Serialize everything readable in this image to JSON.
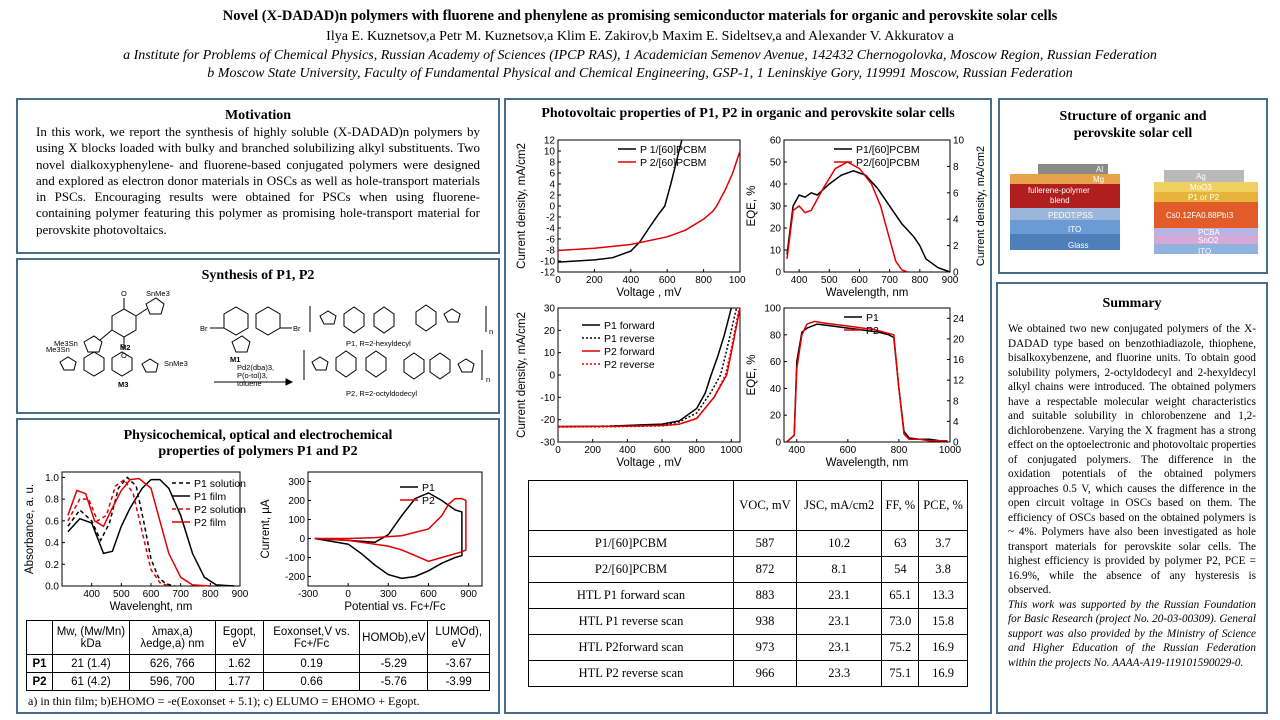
{
  "header": {
    "title": "Novel (X-DADAD)n polymers with fluorene and phenylene as promising semiconductor materials for organic and perovskite solar cells",
    "authors": "Ilya E. Kuznetsov,a Petr M. Kuznetsov,a Klim E. Zakirov,b Maxim E. Sideltsev,a and Alexander V. Akkuratov a",
    "aff_a": "a Institute for Problems of Chemical Physics, Russian Academy of Sciences (IPCP RAS), 1 Academician Semenov Avenue, 142432 Chernogolovka, Moscow Region, Russian Federation",
    "aff_b": "b Moscow State University, Faculty of Fundamental Physical and Chemical Engineering, GSP-1, 1 Leninskiye Gory, 119991 Moscow, Russian Federation"
  },
  "motivation": {
    "title": "Motivation",
    "text": "In this work, we report the synthesis of highly soluble (X-DADAD)n polymers by using X blocks loaded with bulky and branched solubilizing alkyl substituents. Two novel dialkoxyphenylene- and fluorene-based conjugated polymers were designed and explored as electron donor materials in OSCs as well as hole-transport materials in PSCs. Encouraging results were obtained for PSCs when using fluorene-containing polymer featuring this polymer as promising hole-transport material for perovskite photovoltaics."
  },
  "synthesis": {
    "title": "Synthesis of P1, P2",
    "labels": {
      "m2": "M2",
      "m1": "M1",
      "m3": "M3",
      "p1": "P1, R=2-hexyldecyl",
      "p2": "P2, R=2-octyldodecyl",
      "sn1": "Me3Sn",
      "sn2": "SnMe3",
      "br1": "Br",
      "br2": "Br",
      "cat": "Pd2(dba)3,",
      "lig": "P(o-tol)3,",
      "solv": "toluene",
      "n1": "n",
      "n2": "n",
      "o": "O",
      "r": "R"
    }
  },
  "physchem": {
    "title1": "Physicochemical, optical and electrochemical",
    "title2": "properties of polymers P1 and P2",
    "table": {
      "headers": [
        "",
        "Mw, (Mw/Mn) kDa",
        "λmax,a) λedge,a) nm",
        "Egopt, eV",
        "Eoxonset,V vs. Fc+/Fc",
        "HOMOb),eV",
        "LUMOd), eV"
      ],
      "rows": [
        [
          "P1",
          "21 (1.4)",
          "626, 766",
          "1.62",
          "0.19",
          "-5.29",
          "-3.67"
        ],
        [
          "P2",
          "61 (4.2)",
          "596, 700",
          "1.77",
          "0.66",
          "-5.76",
          "-3.99"
        ]
      ]
    },
    "footnote": "a) in thin film; b)EHOMO = -e(Eoxonset + 5.1); c) ELUMO = EHOMO + Egopt."
  },
  "pv": {
    "title": "Photovoltaic properties of P1, P2 in organic and perovskite solar cells",
    "table": {
      "headers": [
        "",
        "VOC, mV",
        "JSC, mA/cm2",
        "FF, %",
        "PCE, %"
      ],
      "rows": [
        [
          "P1/[60]PCBM",
          "587",
          "10.2",
          "63",
          "3.7"
        ],
        [
          "P2/[60]PCBM",
          "872",
          "8.1",
          "54",
          "3.8"
        ],
        [
          "HTL P1 forward scan",
          "883",
          "23.1",
          "65.1",
          "13.3"
        ],
        [
          "HTL P1 reverse scan",
          "938",
          "23.1",
          "73.0",
          "15.8"
        ],
        [
          "HTL P2forward scan",
          "973",
          "23.1",
          "75.2",
          "16.9"
        ],
        [
          "HTL P2 reverse scan",
          "966",
          "23.3",
          "75.1",
          "16.9"
        ]
      ]
    }
  },
  "structure": {
    "title1": "Structure of organic and",
    "title2": "perovskite solar cell",
    "left_layers": [
      "Al",
      "Mg",
      "fullerene-polymer",
      "blend",
      "PEDOT:PSS",
      "ITO",
      "Glass"
    ],
    "right_layers": [
      "Ag",
      "MoO3",
      "P1 or P2",
      "Cs0.12FA0.88PbI3",
      "PCBA",
      "SnO2",
      "ITO"
    ]
  },
  "summary": {
    "title": "Summary",
    "text": "We obtained two new conjugated polymers of the X-DADAD type based on benzothiadiazole, thiophene, bisalkoxybenzene, and fluorine units. To obtain good solubility polymers, 2-octyldodecyl and 2-hexyldecyl alkyl chains were introduced. The obtained polymers have a respectable molecular weight characteristics and suitable solubility in chlorobenzene and 1,2-dichlorobenzene. Varying the X fragment has a strong effect on the optoelectronic and photovoltaic properties of conjugated polymers. The difference in the oxidation potentials of the obtained polymers approaches 0.5 V, which causes the difference in the open circuit voltage in OSCs based on them. The efficiency of OSCs based on the obtained polymers is ~ 4%. Polymers have also been investigated as hole transport materials for perovskite solar cells. The highest efficiency is provided by polymer P2, PCE = 16.9%, while the absence of any hysteresis is observed.",
    "ack": "This work was supported by the Russian Foundation for Basic Research (project No. 20-03-00309). General support was also provided by the Ministry of Science and Higher Education of the Russian Federation within the projects No. AAAA-A19-119101590029-0."
  },
  "chart_data": [
    {
      "type": "line",
      "id": "absorbance",
      "xlabel": "Wavelenght, nm",
      "ylabel": "Absorbance, a. u.",
      "xlim": [
        300,
        900
      ],
      "ylim": [
        0,
        1.05
      ],
      "xticks": [
        "400",
        "500",
        "600",
        "700",
        "800",
        "900"
      ],
      "yticks": [
        "0.0",
        "0.2",
        "0.4",
        "0.6",
        "0.8",
        "1.0"
      ],
      "series": [
        {
          "name": "P1 solution",
          "color": "#000000",
          "dash": "4,3",
          "x": [
            320,
            360,
            400,
            430,
            460,
            490,
            520,
            550,
            575,
            600,
            625,
            650,
            680
          ],
          "y": [
            0.55,
            0.7,
            0.6,
            0.42,
            0.58,
            0.9,
            1.0,
            0.92,
            0.6,
            0.25,
            0.08,
            0.02,
            0.0
          ]
        },
        {
          "name": "P1 film",
          "color": "#000000",
          "dash": "",
          "x": [
            320,
            360,
            400,
            440,
            470,
            500,
            530,
            570,
            600,
            630,
            660,
            700,
            740,
            780,
            820,
            880
          ],
          "y": [
            0.5,
            0.62,
            0.58,
            0.3,
            0.32,
            0.55,
            0.72,
            0.9,
            0.98,
            0.98,
            0.9,
            0.65,
            0.3,
            0.08,
            0.01,
            0.0
          ]
        },
        {
          "name": "P2 solution",
          "color": "#e00000",
          "dash": "4,3",
          "x": [
            320,
            360,
            390,
            420,
            450,
            480,
            510,
            540,
            570,
            600,
            630,
            660
          ],
          "y": [
            0.6,
            0.8,
            0.8,
            0.6,
            0.65,
            0.92,
            0.98,
            0.85,
            0.5,
            0.15,
            0.03,
            0.0
          ]
        },
        {
          "name": "P2 film",
          "color": "#e00000",
          "dash": "",
          "x": [
            320,
            350,
            380,
            410,
            440,
            470,
            500,
            530,
            560,
            600,
            630,
            660,
            700,
            740,
            800
          ],
          "y": [
            0.65,
            0.88,
            0.85,
            0.6,
            0.55,
            0.72,
            0.88,
            0.98,
            0.99,
            0.9,
            0.6,
            0.3,
            0.08,
            0.01,
            0.0
          ]
        }
      ]
    },
    {
      "type": "line",
      "id": "cv",
      "xlabel": "Potential vs. Fc+/Fc",
      "ylabel": "Current, µA",
      "xlim": [
        -300,
        1000
      ],
      "ylim": [
        -250,
        350
      ],
      "xticks": [
        "-300",
        "0",
        "300",
        "600",
        "900"
      ],
      "yticks": [
        "-200",
        "-100",
        "0",
        "100",
        "200",
        "300"
      ],
      "series": [
        {
          "name": "P1",
          "color": "#000000",
          "x": [
            -250,
            0,
            200,
            300,
            400,
            500,
            600,
            700,
            800,
            850,
            850,
            800,
            700,
            600,
            500,
            400,
            300,
            200,
            100,
            0,
            -250
          ],
          "y": [
            0,
            -10,
            -20,
            20,
            120,
            210,
            240,
            200,
            150,
            140,
            -90,
            -100,
            -130,
            -170,
            -200,
            -210,
            -190,
            -140,
            -80,
            -30,
            0
          ]
        },
        {
          "name": "P2",
          "color": "#e00000",
          "x": [
            -250,
            0,
            200,
            400,
            600,
            700,
            750,
            800,
            850,
            880,
            880,
            850,
            800,
            700,
            600,
            500,
            400,
            300,
            200,
            100,
            0,
            -250
          ],
          "y": [
            0,
            0,
            5,
            15,
            50,
            120,
            180,
            210,
            210,
            200,
            -60,
            -70,
            -80,
            -100,
            -120,
            -90,
            -60,
            -40,
            -30,
            -20,
            -10,
            0
          ]
        }
      ]
    },
    {
      "type": "line",
      "id": "jv_opv",
      "xlabel": "Voltage , mV",
      "ylabel": "Current density, mA/cm2",
      "xlim": [
        0,
        1000
      ],
      "ylim": [
        -12,
        12
      ],
      "xticks": [
        "0",
        "200",
        "400",
        "600",
        "800",
        "1000"
      ],
      "yticks": [
        "-12",
        "-10",
        "-8",
        "-6",
        "-4",
        "-2",
        "0",
        "2",
        "4",
        "6",
        "8",
        "10",
        "12"
      ],
      "series": [
        {
          "name": "P 1/[60]PCBM",
          "color": "#000000",
          "x": [
            0,
            100,
            200,
            300,
            400,
            450,
            500,
            550,
            587,
            620,
            650,
            680
          ],
          "y": [
            -10.2,
            -10,
            -9.8,
            -9.4,
            -8.2,
            -6.5,
            -4,
            -1.6,
            0,
            4,
            8,
            12
          ]
        },
        {
          "name": "P 2/[60]PCBM",
          "color": "#e00000",
          "x": [
            0,
            200,
            400,
            600,
            700,
            800,
            850,
            872,
            920,
            960,
            1000
          ],
          "y": [
            -8.1,
            -7.7,
            -7,
            -5.6,
            -4.4,
            -2.4,
            -1,
            0,
            3,
            6,
            10
          ]
        }
      ]
    },
    {
      "type": "line",
      "id": "eqe_opv",
      "xlabel": "Wavelength, nm",
      "ylabel": "EQE, %",
      "y2label": "Current density, mA/cm2",
      "xlim": [
        350,
        900
      ],
      "ylim": [
        0,
        60
      ],
      "y2lim": [
        0,
        10
      ],
      "xticks": [
        "400",
        "500",
        "600",
        "700",
        "800",
        "900"
      ],
      "yticks": [
        "0",
        "10",
        "20",
        "30",
        "40",
        "50",
        "60"
      ],
      "y2ticks": [
        "0",
        "2",
        "4",
        "6",
        "8",
        "10"
      ],
      "series": [
        {
          "name": "P1/[60]PCBM",
          "color": "#000000",
          "x": [
            360,
            380,
            400,
            420,
            440,
            460,
            500,
            540,
            580,
            620,
            660,
            700,
            740,
            780,
            800,
            820,
            860,
            900
          ],
          "y": [
            8,
            30,
            35,
            34,
            36,
            35,
            40,
            44,
            46,
            44,
            38,
            30,
            22,
            16,
            12,
            6,
            2,
            0
          ]
        },
        {
          "name": "P2/[60]PCBM",
          "color": "#e00000",
          "x": [
            360,
            380,
            400,
            420,
            440,
            480,
            520,
            560,
            600,
            640,
            670,
            700,
            720,
            740,
            760
          ],
          "y": [
            6,
            28,
            30,
            27,
            28,
            38,
            47,
            50,
            47,
            40,
            30,
            15,
            5,
            1,
            0
          ]
        }
      ]
    },
    {
      "type": "line",
      "id": "jv_psc",
      "xlabel": "Voltage , mV",
      "ylabel": "Current density, mA/cm2",
      "xlim": [
        0,
        1050
      ],
      "ylim": [
        -30,
        30
      ],
      "xticks": [
        "0",
        "200",
        "400",
        "600",
        "800",
        "1000"
      ],
      "yticks": [
        "-30",
        "-20",
        "-10",
        "0",
        "10",
        "20",
        "30"
      ],
      "series": [
        {
          "name": "P1 forward",
          "color": "#000000",
          "x": [
            0,
            300,
            600,
            700,
            800,
            850,
            883,
            920,
            960,
            1000
          ],
          "y": [
            -23.1,
            -22.9,
            -22,
            -20.5,
            -15,
            -8,
            0,
            8,
            18,
            30
          ]
        },
        {
          "name": "P1 reverse",
          "color": "#000000",
          "dash": "2,2",
          "x": [
            0,
            300,
            600,
            700,
            800,
            880,
            938,
            970,
            1000,
            1030
          ],
          "y": [
            -23.1,
            -22.9,
            -22.3,
            -21,
            -17,
            -8,
            0,
            10,
            20,
            30
          ]
        },
        {
          "name": "P2 forward",
          "color": "#e00000",
          "x": [
            0,
            300,
            600,
            700,
            800,
            900,
            973,
            1000,
            1030,
            1050
          ],
          "y": [
            -23.1,
            -23,
            -22.6,
            -22,
            -19.5,
            -10,
            0,
            10,
            22,
            30
          ]
        },
        {
          "name": "P2 reverse",
          "color": "#e00000",
          "dash": "2,2",
          "x": [
            0,
            300,
            600,
            700,
            800,
            900,
            966,
            995,
            1025,
            1045
          ],
          "y": [
            -23.3,
            -23.2,
            -22.8,
            -22,
            -19.5,
            -10,
            0,
            10,
            22,
            30
          ]
        }
      ]
    },
    {
      "type": "line",
      "id": "eqe_psc",
      "xlabel": "Wavelength, nm",
      "ylabel": "EQE, %",
      "y2label": "",
      "xlim": [
        350,
        1000
      ],
      "ylim": [
        0,
        100
      ],
      "y2lim": [
        0,
        26
      ],
      "xticks": [
        "400",
        "600",
        "800",
        "1000"
      ],
      "yticks": [
        "0",
        "20",
        "40",
        "60",
        "80",
        "100"
      ],
      "y2ticks": [
        "0",
        "4",
        "8",
        "12",
        "16",
        "20",
        "24"
      ],
      "series": [
        {
          "name": "P1",
          "color": "#000000",
          "x": [
            360,
            390,
            400,
            420,
            440,
            480,
            520,
            560,
            600,
            640,
            680,
            720,
            760,
            780,
            800,
            820,
            840,
            880,
            920,
            960,
            990
          ],
          "y": [
            0,
            5,
            60,
            82,
            85,
            88,
            87,
            86,
            85,
            84,
            83,
            82,
            80,
            78,
            40,
            8,
            3,
            2,
            2,
            1,
            1
          ]
        },
        {
          "name": "P2",
          "color": "#e00000",
          "x": [
            360,
            390,
            400,
            420,
            440,
            470,
            500,
            540,
            580,
            620,
            660,
            700,
            740,
            780,
            800,
            820,
            840,
            880,
            920,
            990
          ],
          "y": [
            0,
            5,
            55,
            80,
            88,
            90,
            89,
            88,
            87,
            86,
            85,
            84,
            82,
            80,
            40,
            6,
            2,
            2,
            1,
            1
          ]
        }
      ]
    }
  ]
}
